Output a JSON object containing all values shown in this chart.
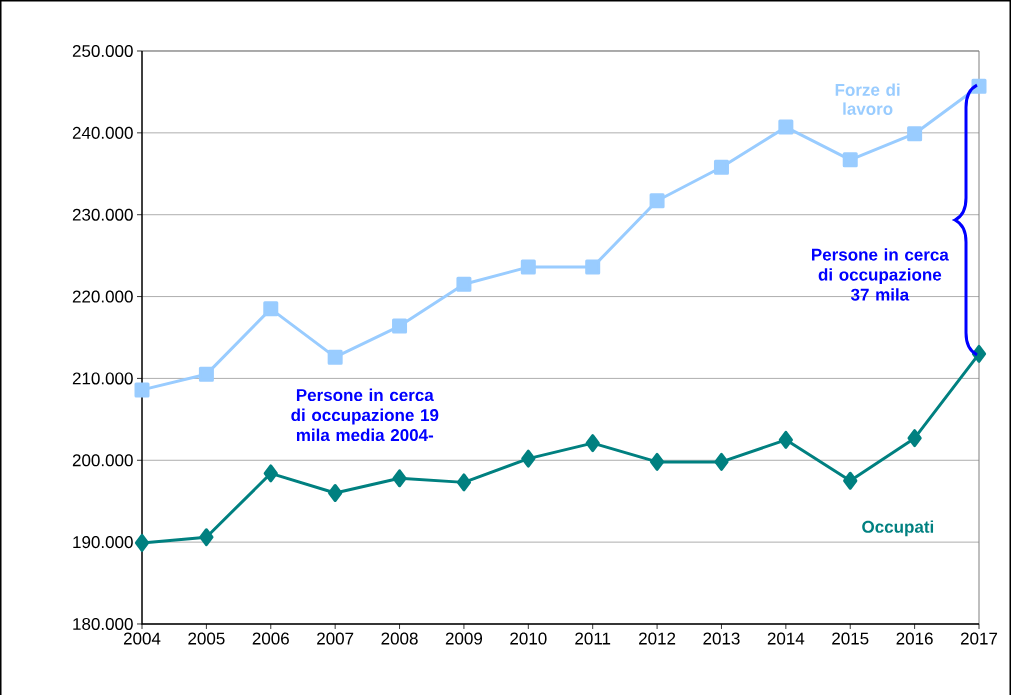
{
  "chart_data": {
    "type": "line",
    "categories": [
      "2004",
      "2005",
      "2006",
      "2007",
      "2008",
      "2009",
      "2010",
      "2011",
      "2012",
      "2013",
      "2014",
      "2015",
      "2016",
      "2017"
    ],
    "series": [
      {
        "name": "Forze di lavoro",
        "color": "#99ccff",
        "marker": "square",
        "values": [
          208600,
          210500,
          218500,
          212600,
          216400,
          221500,
          223600,
          223600,
          231700,
          235800,
          240700,
          236700,
          239900,
          245700
        ]
      },
      {
        "name": "Occupati",
        "color": "#008080",
        "marker": "diamond",
        "values": [
          189900,
          190600,
          198400,
          196000,
          197800,
          197300,
          200200,
          202100,
          199800,
          199800,
          202500,
          197500,
          202700,
          213000
        ]
      }
    ],
    "ylim": [
      180000,
      250000
    ],
    "yticks": [
      {
        "value": 180000,
        "label": "180.000"
      },
      {
        "value": 190000,
        "label": "190.000"
      },
      {
        "value": 200000,
        "label": "200.000"
      },
      {
        "value": 210000,
        "label": "210.000"
      },
      {
        "value": 220000,
        "label": "220.000"
      },
      {
        "value": 230000,
        "label": "230.000"
      },
      {
        "value": 240000,
        "label": "240.000"
      },
      {
        "value": 250000,
        "label": "250.000"
      }
    ],
    "grid": "y",
    "legend": false,
    "line_style": "solid",
    "annotations": [
      "Persone in cerca di occupazione 19 mila media 2004-",
      "Persone in cerca di occupazione 37 mila"
    ]
  }
}
